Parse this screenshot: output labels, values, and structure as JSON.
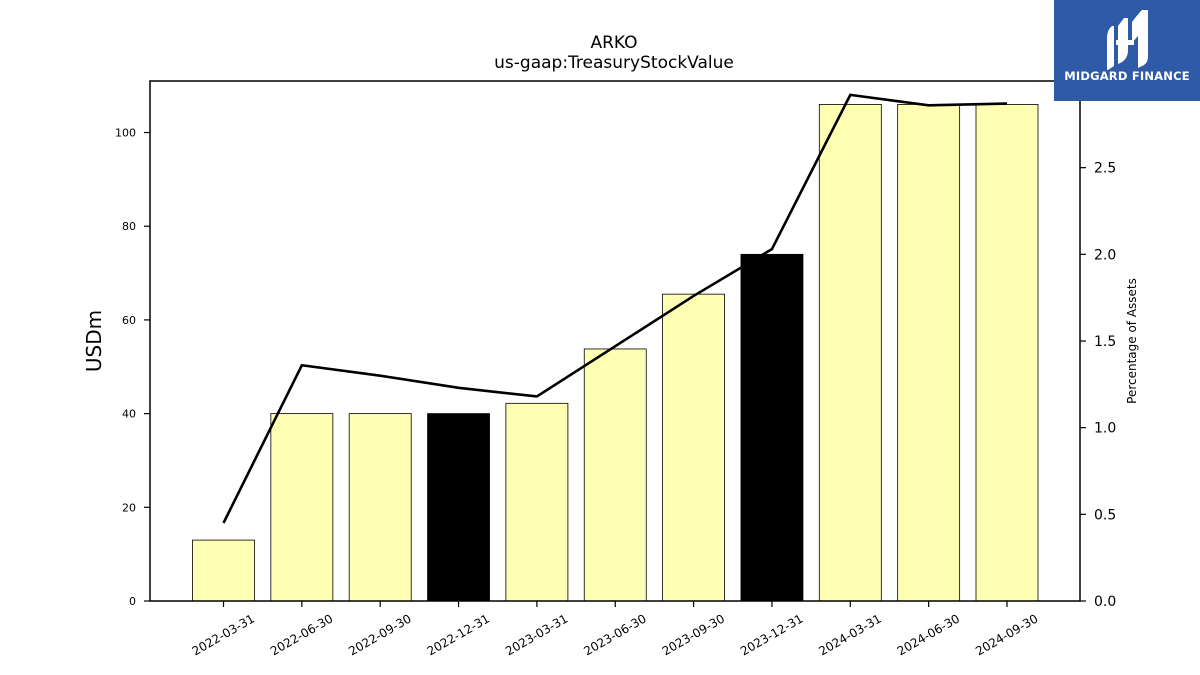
{
  "chart_data": {
    "type": "bar",
    "title": "ARKO",
    "subtitle": "us-gaap:TreasuryStockValue",
    "ylabel": "USDm",
    "y2label": "Percentage of Assets",
    "categories": [
      "2022-03-31",
      "2022-06-30",
      "2022-09-30",
      "2022-12-31",
      "2023-03-31",
      "2023-06-30",
      "2023-09-30",
      "2023-12-31",
      "2024-03-31",
      "2024-06-30",
      "2024-09-30"
    ],
    "values": [
      13.0,
      40.0,
      40.0,
      40.0,
      42.2,
      53.8,
      65.5,
      74.0,
      106.0,
      106.0,
      106.0
    ],
    "bar_colors": [
      "#ffffb3",
      "#ffffb3",
      "#ffffb3",
      "#000000",
      "#ffffb3",
      "#ffffb3",
      "#ffffb3",
      "#000000",
      "#ffffb3",
      "#ffffb3",
      "#ffffb3"
    ],
    "line_values": [
      0.45,
      1.36,
      1.3,
      1.23,
      1.18,
      1.47,
      1.76,
      2.03,
      2.92,
      2.86,
      2.87
    ],
    "ylim": [
      0,
      111
    ],
    "y2lim": [
      0,
      3.0
    ],
    "yticks": [
      0,
      20,
      40,
      60,
      80,
      100
    ],
    "y2ticks": [
      0.0,
      0.5,
      1.0,
      1.5,
      2.0,
      2.5
    ],
    "grid": false
  },
  "logo": {
    "text": "MIDGARD FINANCE"
  }
}
